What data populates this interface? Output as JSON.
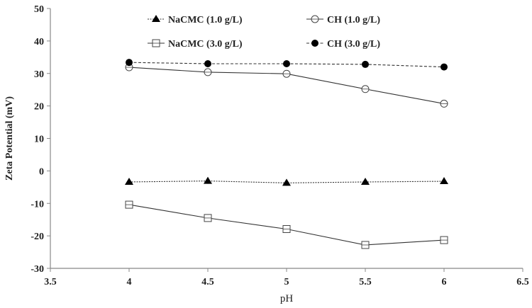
{
  "chart_data": {
    "type": "line",
    "title": "",
    "xlabel": "pH",
    "ylabel": "Zeta Potential (mV)",
    "xlim": [
      3.5,
      6.5
    ],
    "ylim": [
      -30,
      50
    ],
    "xticks": [
      3.5,
      4,
      4.5,
      5,
      5.5,
      6,
      6.5
    ],
    "xtick_labels": [
      "3.5",
      "4",
      "4.5",
      "5",
      "5.5",
      "6",
      "6.5"
    ],
    "yticks": [
      50,
      40,
      30,
      20,
      10,
      0,
      -10,
      -20,
      -30
    ],
    "ytick_labels": [
      "50",
      "40",
      "30",
      "20",
      "10",
      "0",
      "-10",
      "-20",
      "-30"
    ],
    "grid": false,
    "legend_position": "top, inside plot, 2 columns",
    "x": [
      4,
      4.5,
      5,
      5.5,
      6
    ],
    "series": [
      {
        "name": "NaCMC (1.0 g/L)",
        "marker": "filled-triangle",
        "line": "dotted",
        "values": [
          -3.4,
          -3.1,
          -3.7,
          -3.4,
          -3.2
        ]
      },
      {
        "name": "CH (1.0 g/L)",
        "marker": "open-circle",
        "line": "solid",
        "values": [
          31.9,
          30.4,
          29.9,
          25.2,
          20.7
        ]
      },
      {
        "name": "NaCMC (3.0 g/L)",
        "marker": "open-square",
        "line": "solid",
        "values": [
          -10.4,
          -14.5,
          -17.9,
          -22.8,
          -21.3
        ]
      },
      {
        "name": "CH (3.0 g/L)",
        "marker": "filled-circle",
        "line": "dashed",
        "values": [
          33.4,
          33.0,
          33.0,
          32.8,
          32.0
        ]
      }
    ]
  }
}
